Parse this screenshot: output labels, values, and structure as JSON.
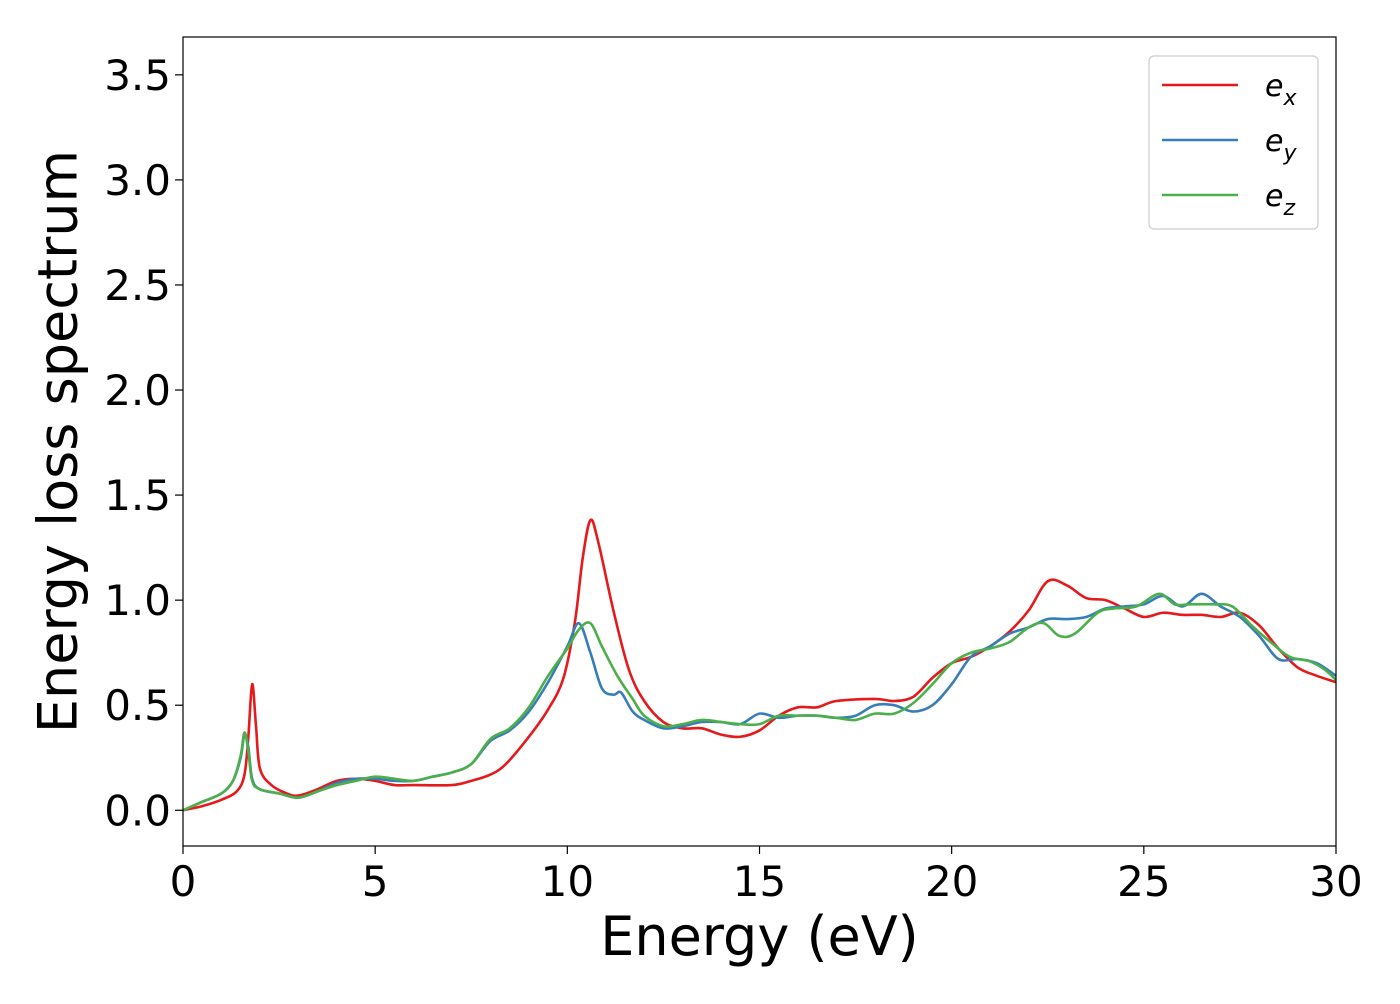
{
  "chart_data": {
    "type": "line",
    "title": "",
    "xlabel": "Energy (eV)",
    "ylabel": "Energy loss spectrum",
    "xlim": [
      0,
      30
    ],
    "ylim": [
      -0.17,
      3.68
    ],
    "xticks": [
      0,
      5,
      10,
      15,
      20,
      25,
      30
    ],
    "yticks": [
      0.0,
      0.5,
      1.0,
      1.5,
      2.0,
      2.5,
      3.0,
      3.5
    ],
    "xtick_labels": [
      "0",
      "5",
      "10",
      "15",
      "20",
      "25",
      "30"
    ],
    "ytick_labels": [
      "0.0",
      "0.5",
      "1.0",
      "1.5",
      "2.0",
      "2.5",
      "3.0",
      "3.5"
    ],
    "grid": false,
    "legend_position": "top-right",
    "series": [
      {
        "name": "e_x",
        "label_base": "e",
        "label_sub": "x",
        "color": "#e41a1c",
        "points": [
          [
            0,
            0
          ],
          [
            0.5,
            0.02
          ],
          [
            1.0,
            0.05
          ],
          [
            1.4,
            0.09
          ],
          [
            1.6,
            0.17
          ],
          [
            1.7,
            0.35
          ],
          [
            1.8,
            0.6
          ],
          [
            1.9,
            0.4
          ],
          [
            2.0,
            0.2
          ],
          [
            2.3,
            0.12
          ],
          [
            2.7,
            0.08
          ],
          [
            3.0,
            0.07
          ],
          [
            3.5,
            0.1
          ],
          [
            4.0,
            0.14
          ],
          [
            4.5,
            0.15
          ],
          [
            5.0,
            0.14
          ],
          [
            5.5,
            0.12
          ],
          [
            6.0,
            0.12
          ],
          [
            7.0,
            0.12
          ],
          [
            7.5,
            0.14
          ],
          [
            8.0,
            0.17
          ],
          [
            8.4,
            0.22
          ],
          [
            9.0,
            0.35
          ],
          [
            9.5,
            0.48
          ],
          [
            9.9,
            0.63
          ],
          [
            10.2,
            0.9
          ],
          [
            10.4,
            1.2
          ],
          [
            10.6,
            1.38
          ],
          [
            10.8,
            1.28
          ],
          [
            11.2,
            0.95
          ],
          [
            11.6,
            0.67
          ],
          [
            12.0,
            0.52
          ],
          [
            12.5,
            0.42
          ],
          [
            13.0,
            0.39
          ],
          [
            13.5,
            0.39
          ],
          [
            14.0,
            0.36
          ],
          [
            14.5,
            0.35
          ],
          [
            15.0,
            0.38
          ],
          [
            15.5,
            0.45
          ],
          [
            16.0,
            0.49
          ],
          [
            16.5,
            0.49
          ],
          [
            17.0,
            0.52
          ],
          [
            18.0,
            0.53
          ],
          [
            18.5,
            0.52
          ],
          [
            19.0,
            0.54
          ],
          [
            19.5,
            0.63
          ],
          [
            20.0,
            0.7
          ],
          [
            20.5,
            0.73
          ],
          [
            21.0,
            0.78
          ],
          [
            21.5,
            0.85
          ],
          [
            22.0,
            0.95
          ],
          [
            22.5,
            1.09
          ],
          [
            23.0,
            1.07
          ],
          [
            23.5,
            1.01
          ],
          [
            24.0,
            1.0
          ],
          [
            24.5,
            0.96
          ],
          [
            25.0,
            0.92
          ],
          [
            25.5,
            0.94
          ],
          [
            26.0,
            0.93
          ],
          [
            26.5,
            0.93
          ],
          [
            27.0,
            0.92
          ],
          [
            27.5,
            0.94
          ],
          [
            28.0,
            0.88
          ],
          [
            28.5,
            0.77
          ],
          [
            29.0,
            0.68
          ],
          [
            29.5,
            0.64
          ],
          [
            30.0,
            0.61
          ]
        ]
      },
      {
        "name": "e_y",
        "label_base": "e",
        "label_sub": "y",
        "color": "#377eb8",
        "points": [
          [
            0,
            0
          ],
          [
            0.5,
            0.04
          ],
          [
            1.0,
            0.08
          ],
          [
            1.3,
            0.14
          ],
          [
            1.5,
            0.25
          ],
          [
            1.6,
            0.36
          ],
          [
            1.7,
            0.3
          ],
          [
            1.8,
            0.15
          ],
          [
            2.0,
            0.1
          ],
          [
            2.5,
            0.08
          ],
          [
            3.0,
            0.06
          ],
          [
            3.5,
            0.09
          ],
          [
            4.0,
            0.13
          ],
          [
            4.5,
            0.15
          ],
          [
            5.0,
            0.15
          ],
          [
            5.5,
            0.14
          ],
          [
            6.0,
            0.14
          ],
          [
            6.5,
            0.16
          ],
          [
            7.0,
            0.18
          ],
          [
            7.5,
            0.22
          ],
          [
            8.0,
            0.33
          ],
          [
            8.5,
            0.38
          ],
          [
            9.0,
            0.47
          ],
          [
            9.5,
            0.61
          ],
          [
            10.0,
            0.78
          ],
          [
            10.3,
            0.89
          ],
          [
            10.6,
            0.75
          ],
          [
            10.9,
            0.58
          ],
          [
            11.2,
            0.55
          ],
          [
            11.4,
            0.56
          ],
          [
            11.7,
            0.47
          ],
          [
            12.0,
            0.43
          ],
          [
            12.5,
            0.39
          ],
          [
            13.0,
            0.4
          ],
          [
            13.5,
            0.42
          ],
          [
            14.0,
            0.42
          ],
          [
            14.5,
            0.41
          ],
          [
            15.0,
            0.46
          ],
          [
            15.5,
            0.44
          ],
          [
            16.0,
            0.45
          ],
          [
            16.5,
            0.45
          ],
          [
            17.0,
            0.44
          ],
          [
            17.5,
            0.45
          ],
          [
            18.0,
            0.5
          ],
          [
            18.5,
            0.5
          ],
          [
            19.0,
            0.47
          ],
          [
            19.5,
            0.5
          ],
          [
            20.0,
            0.6
          ],
          [
            20.5,
            0.73
          ],
          [
            21.0,
            0.78
          ],
          [
            21.5,
            0.84
          ],
          [
            22.0,
            0.87
          ],
          [
            22.5,
            0.91
          ],
          [
            23.0,
            0.91
          ],
          [
            23.5,
            0.92
          ],
          [
            24.0,
            0.96
          ],
          [
            24.5,
            0.97
          ],
          [
            25.0,
            0.98
          ],
          [
            25.5,
            1.02
          ],
          [
            26.0,
            0.97
          ],
          [
            26.5,
            1.03
          ],
          [
            27.0,
            0.97
          ],
          [
            27.5,
            0.92
          ],
          [
            28.0,
            0.83
          ],
          [
            28.5,
            0.72
          ],
          [
            29.0,
            0.72
          ],
          [
            29.5,
            0.7
          ],
          [
            30.0,
            0.64
          ]
        ]
      },
      {
        "name": "e_z",
        "label_base": "e",
        "label_sub": "z",
        "color": "#4daf4a",
        "points": [
          [
            0,
            0
          ],
          [
            0.5,
            0.04
          ],
          [
            1.0,
            0.08
          ],
          [
            1.3,
            0.14
          ],
          [
            1.5,
            0.26
          ],
          [
            1.6,
            0.37
          ],
          [
            1.7,
            0.28
          ],
          [
            1.8,
            0.14
          ],
          [
            2.0,
            0.1
          ],
          [
            2.5,
            0.08
          ],
          [
            3.0,
            0.06
          ],
          [
            3.5,
            0.09
          ],
          [
            4.0,
            0.12
          ],
          [
            4.5,
            0.14
          ],
          [
            5.0,
            0.16
          ],
          [
            5.5,
            0.15
          ],
          [
            6.0,
            0.14
          ],
          [
            6.5,
            0.16
          ],
          [
            7.0,
            0.18
          ],
          [
            7.5,
            0.22
          ],
          [
            8.0,
            0.34
          ],
          [
            8.5,
            0.39
          ],
          [
            9.0,
            0.49
          ],
          [
            9.5,
            0.64
          ],
          [
            10.0,
            0.77
          ],
          [
            10.3,
            0.86
          ],
          [
            10.6,
            0.89
          ],
          [
            10.9,
            0.78
          ],
          [
            11.3,
            0.64
          ],
          [
            11.7,
            0.53
          ],
          [
            12.0,
            0.45
          ],
          [
            12.5,
            0.4
          ],
          [
            13.0,
            0.41
          ],
          [
            13.5,
            0.43
          ],
          [
            14.0,
            0.42
          ],
          [
            14.5,
            0.41
          ],
          [
            15.0,
            0.41
          ],
          [
            15.5,
            0.45
          ],
          [
            16.0,
            0.45
          ],
          [
            16.5,
            0.45
          ],
          [
            17.0,
            0.44
          ],
          [
            17.5,
            0.43
          ],
          [
            18.0,
            0.46
          ],
          [
            18.5,
            0.46
          ],
          [
            19.0,
            0.51
          ],
          [
            19.5,
            0.6
          ],
          [
            20.0,
            0.7
          ],
          [
            20.5,
            0.75
          ],
          [
            21.0,
            0.77
          ],
          [
            21.5,
            0.8
          ],
          [
            22.0,
            0.87
          ],
          [
            22.4,
            0.89
          ],
          [
            22.8,
            0.83
          ],
          [
            23.2,
            0.84
          ],
          [
            23.8,
            0.94
          ],
          [
            24.2,
            0.96
          ],
          [
            24.8,
            0.97
          ],
          [
            25.4,
            1.03
          ],
          [
            25.8,
            0.98
          ],
          [
            26.2,
            0.98
          ],
          [
            26.8,
            0.98
          ],
          [
            27.3,
            0.97
          ],
          [
            27.8,
            0.88
          ],
          [
            28.3,
            0.8
          ],
          [
            28.8,
            0.73
          ],
          [
            29.3,
            0.71
          ],
          [
            29.7,
            0.67
          ],
          [
            30.0,
            0.62
          ]
        ]
      }
    ]
  }
}
